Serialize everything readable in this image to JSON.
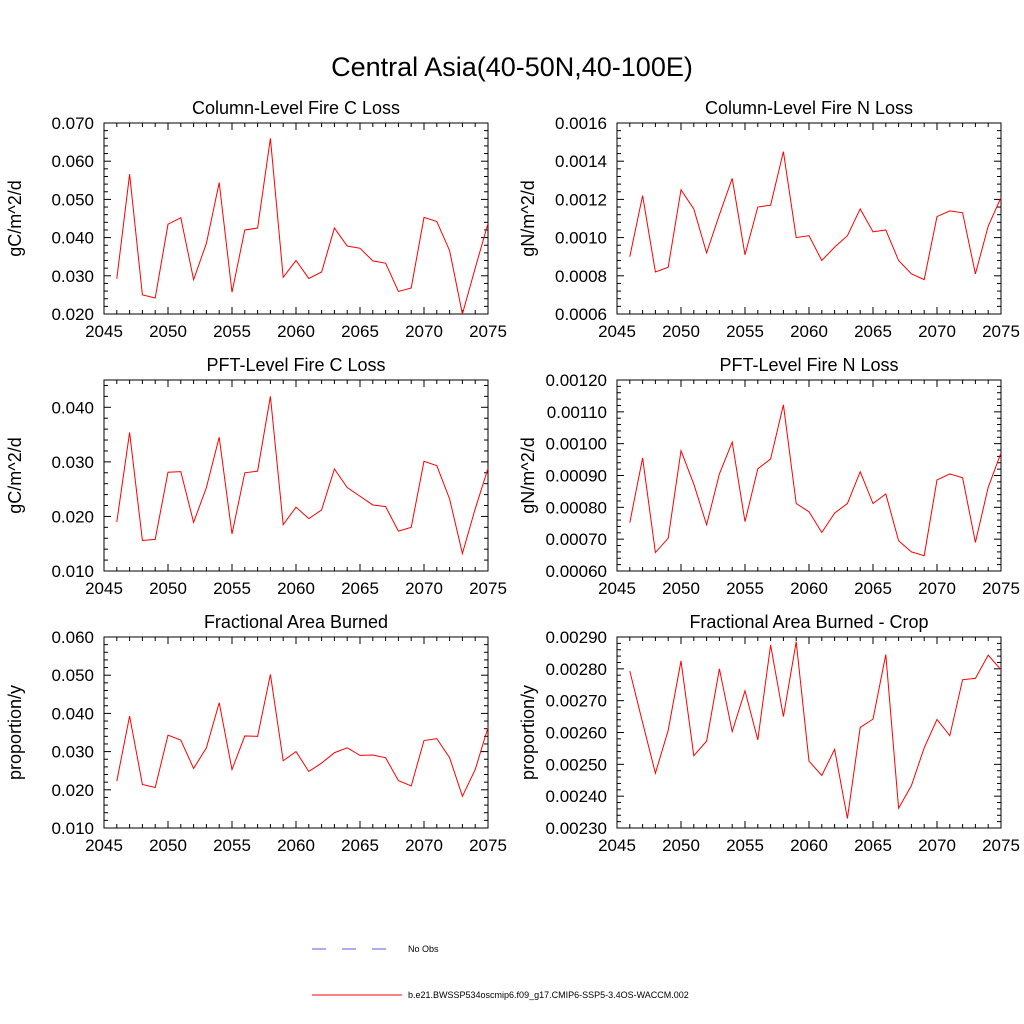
{
  "title": "Central Asia(40-50N,40-100E)",
  "colors": {
    "series": "#ff0000",
    "obs": "#5a5ae0",
    "axis": "#000000"
  },
  "legend": [
    {
      "label": "No Obs",
      "style": "dashed",
      "color": "#5a5ae0"
    },
    {
      "label": "b.e21.BWSSP534oscmip6.f09_g17.CMIP6-SSP5-3.4OS-WACCM.002",
      "style": "solid",
      "color": "#ff0000"
    }
  ],
  "chart_data": [
    {
      "type": "line",
      "title": "Column-Level Fire C Loss",
      "xlabel": "",
      "ylabel": "gC/m^2/d",
      "xlim": [
        2045,
        2075
      ],
      "ylim": [
        0.02,
        0.07
      ],
      "xticks": [
        "2045",
        "2050",
        "2055",
        "2060",
        "2065",
        "2070",
        "2075"
      ],
      "yticks": [
        "0.020",
        "0.030",
        "0.040",
        "0.050",
        "0.060",
        "0.070"
      ],
      "x": [
        2046,
        2047,
        2048,
        2049,
        2050,
        2051,
        2052,
        2053,
        2054,
        2055,
        2056,
        2057,
        2058,
        2059,
        2060,
        2061,
        2062,
        2063,
        2064,
        2065,
        2066,
        2067,
        2068,
        2069,
        2070,
        2071,
        2072,
        2073,
        2074,
        2075
      ],
      "series": [
        {
          "name": "b.e21.BWSSP534oscmip6.f09_g17.CMIP6-SSP5-3.4OS-WACCM.002",
          "values": [
            0.0292,
            0.0566,
            0.025,
            0.0242,
            0.0435,
            0.0452,
            0.029,
            0.0385,
            0.0544,
            0.0257,
            0.042,
            0.0425,
            0.066,
            0.0296,
            0.034,
            0.0293,
            0.031,
            0.0425,
            0.0378,
            0.0372,
            0.0339,
            0.0333,
            0.0259,
            0.0268,
            0.0453,
            0.0442,
            0.0366,
            0.02,
            0.032,
            0.0437
          ]
        }
      ]
    },
    {
      "type": "line",
      "title": "Column-Level Fire N Loss",
      "xlabel": "",
      "ylabel": "gN/m^2/d",
      "xlim": [
        2045,
        2075
      ],
      "ylim": [
        0.0006,
        0.0016
      ],
      "xticks": [
        "2045",
        "2050",
        "2055",
        "2060",
        "2065",
        "2070",
        "2075"
      ],
      "yticks": [
        "0.0006",
        "0.0008",
        "0.0010",
        "0.0012",
        "0.0014",
        "0.0016"
      ],
      "x": [
        2046,
        2047,
        2048,
        2049,
        2050,
        2051,
        2052,
        2053,
        2054,
        2055,
        2056,
        2057,
        2058,
        2059,
        2060,
        2061,
        2062,
        2063,
        2064,
        2065,
        2066,
        2067,
        2068,
        2069,
        2070,
        2071,
        2072,
        2073,
        2074,
        2075
      ],
      "series": [
        {
          "name": "b.e21.BWSSP534oscmip6.f09_g17.CMIP6-SSP5-3.4OS-WACCM.002",
          "values": [
            0.0009,
            0.00122,
            0.00082,
            0.000845,
            0.00125,
            0.00115,
            0.00092,
            0.00112,
            0.00131,
            0.00091,
            0.00116,
            0.00117,
            0.00145,
            0.001,
            0.00101,
            0.00088,
            0.00095,
            0.00101,
            0.00115,
            0.00103,
            0.00104,
            0.00088,
            0.00081,
            0.00078,
            0.00111,
            0.00114,
            0.00113,
            0.00081,
            0.00106,
            0.00121
          ]
        }
      ]
    },
    {
      "type": "line",
      "title": "PFT-Level Fire C Loss",
      "xlabel": "",
      "ylabel": "gC/m^2/d",
      "xlim": [
        2045,
        2075
      ],
      "ylim": [
        0.01,
        0.045
      ],
      "xticks": [
        "2045",
        "2050",
        "2055",
        "2060",
        "2065",
        "2070",
        "2075"
      ],
      "yticks": [
        "0.010",
        "0.020",
        "0.030",
        "0.040"
      ],
      "x": [
        2046,
        2047,
        2048,
        2049,
        2050,
        2051,
        2052,
        2053,
        2054,
        2055,
        2056,
        2057,
        2058,
        2059,
        2060,
        2061,
        2062,
        2063,
        2064,
        2065,
        2066,
        2067,
        2068,
        2069,
        2070,
        2071,
        2072,
        2073,
        2074,
        2075
      ],
      "series": [
        {
          "name": "b.e21.BWSSP534oscmip6.f09_g17.CMIP6-SSP5-3.4OS-WACCM.002",
          "values": [
            0.019,
            0.0354,
            0.0156,
            0.0158,
            0.0281,
            0.0282,
            0.0189,
            0.0253,
            0.0345,
            0.0168,
            0.028,
            0.0283,
            0.042,
            0.0185,
            0.0217,
            0.0196,
            0.0212,
            0.0287,
            0.0253,
            0.0237,
            0.0221,
            0.0218,
            0.0173,
            0.018,
            0.0301,
            0.0293,
            0.0232,
            0.0132,
            0.0214,
            0.0288
          ]
        }
      ]
    },
    {
      "type": "line",
      "title": "PFT-Level Fire N Loss",
      "xlabel": "",
      "ylabel": "gN/m^2/d",
      "xlim": [
        2045,
        2075
      ],
      "ylim": [
        0.0006,
        0.0012
      ],
      "xticks": [
        "2045",
        "2050",
        "2055",
        "2060",
        "2065",
        "2070",
        "2075"
      ],
      "yticks": [
        "0.00060",
        "0.00070",
        "0.00080",
        "0.00090",
        "0.00100",
        "0.00110",
        "0.00120"
      ],
      "x": [
        2046,
        2047,
        2048,
        2049,
        2050,
        2051,
        2052,
        2053,
        2054,
        2055,
        2056,
        2057,
        2058,
        2059,
        2060,
        2061,
        2062,
        2063,
        2064,
        2065,
        2066,
        2067,
        2068,
        2069,
        2070,
        2071,
        2072,
        2073,
        2074,
        2075
      ],
      "series": [
        {
          "name": "b.e21.BWSSP534oscmip6.f09_g17.CMIP6-SSP5-3.4OS-WACCM.002",
          "values": [
            0.000752,
            0.000955,
            0.000658,
            0.000703,
            0.000978,
            0.000873,
            0.000745,
            0.000905,
            0.001005,
            0.000755,
            0.000921,
            0.000952,
            0.001122,
            0.000812,
            0.000786,
            0.000721,
            0.000782,
            0.000812,
            0.000912,
            0.000812,
            0.000842,
            0.000695,
            0.00066,
            0.000648,
            0.000886,
            0.000905,
            0.000893,
            0.00069,
            0.000863,
            0.000971
          ]
        }
      ]
    },
    {
      "type": "line",
      "title": "Fractional Area Burned",
      "xlabel": "",
      "ylabel": "proportion/y",
      "xlim": [
        2045,
        2075
      ],
      "ylim": [
        0.01,
        0.06
      ],
      "xticks": [
        "2045",
        "2050",
        "2055",
        "2060",
        "2065",
        "2070",
        "2075"
      ],
      "yticks": [
        "0.010",
        "0.020",
        "0.030",
        "0.040",
        "0.050",
        "0.060"
      ],
      "x": [
        2046,
        2047,
        2048,
        2049,
        2050,
        2051,
        2052,
        2053,
        2054,
        2055,
        2056,
        2057,
        2058,
        2059,
        2060,
        2061,
        2062,
        2063,
        2064,
        2065,
        2066,
        2067,
        2068,
        2069,
        2070,
        2071,
        2072,
        2073,
        2074,
        2075
      ],
      "series": [
        {
          "name": "b.e21.BWSSP534oscmip6.f09_g17.CMIP6-SSP5-3.4OS-WACCM.002",
          "values": [
            0.0223,
            0.0393,
            0.0214,
            0.0206,
            0.0343,
            0.033,
            0.0256,
            0.031,
            0.0428,
            0.0253,
            0.0341,
            0.034,
            0.0502,
            0.0276,
            0.03,
            0.0248,
            0.027,
            0.0297,
            0.031,
            0.029,
            0.0291,
            0.0284,
            0.0224,
            0.021,
            0.0329,
            0.0334,
            0.0284,
            0.0183,
            0.0253,
            0.0363
          ]
        }
      ]
    },
    {
      "type": "line",
      "title": "Fractional Area Burned - Crop",
      "xlabel": "",
      "ylabel": "proportion/y",
      "xlim": [
        2045,
        2075
      ],
      "ylim": [
        0.0023,
        0.0029
      ],
      "xticks": [
        "2045",
        "2050",
        "2055",
        "2060",
        "2065",
        "2070",
        "2075"
      ],
      "yticks": [
        "0.00230",
        "0.00240",
        "0.00250",
        "0.00260",
        "0.00270",
        "0.00280",
        "0.00290"
      ],
      "x": [
        2046,
        2047,
        2048,
        2049,
        2050,
        2051,
        2052,
        2053,
        2054,
        2055,
        2056,
        2057,
        2058,
        2059,
        2060,
        2061,
        2062,
        2063,
        2064,
        2065,
        2066,
        2067,
        2068,
        2069,
        2070,
        2071,
        2072,
        2073,
        2074,
        2075
      ],
      "series": [
        {
          "name": "b.e21.BWSSP534oscmip6.f09_g17.CMIP6-SSP5-3.4OS-WACCM.002",
          "values": [
            0.002793,
            0.002631,
            0.002472,
            0.002607,
            0.002825,
            0.002527,
            0.002573,
            0.0028,
            0.002603,
            0.002731,
            0.002577,
            0.002875,
            0.00265,
            0.002885,
            0.00251,
            0.002465,
            0.002547,
            0.00233,
            0.002616,
            0.002642,
            0.002845,
            0.002362,
            0.002433,
            0.002552,
            0.002641,
            0.00259,
            0.002766,
            0.00277,
            0.002843,
            0.002797
          ]
        }
      ]
    }
  ]
}
